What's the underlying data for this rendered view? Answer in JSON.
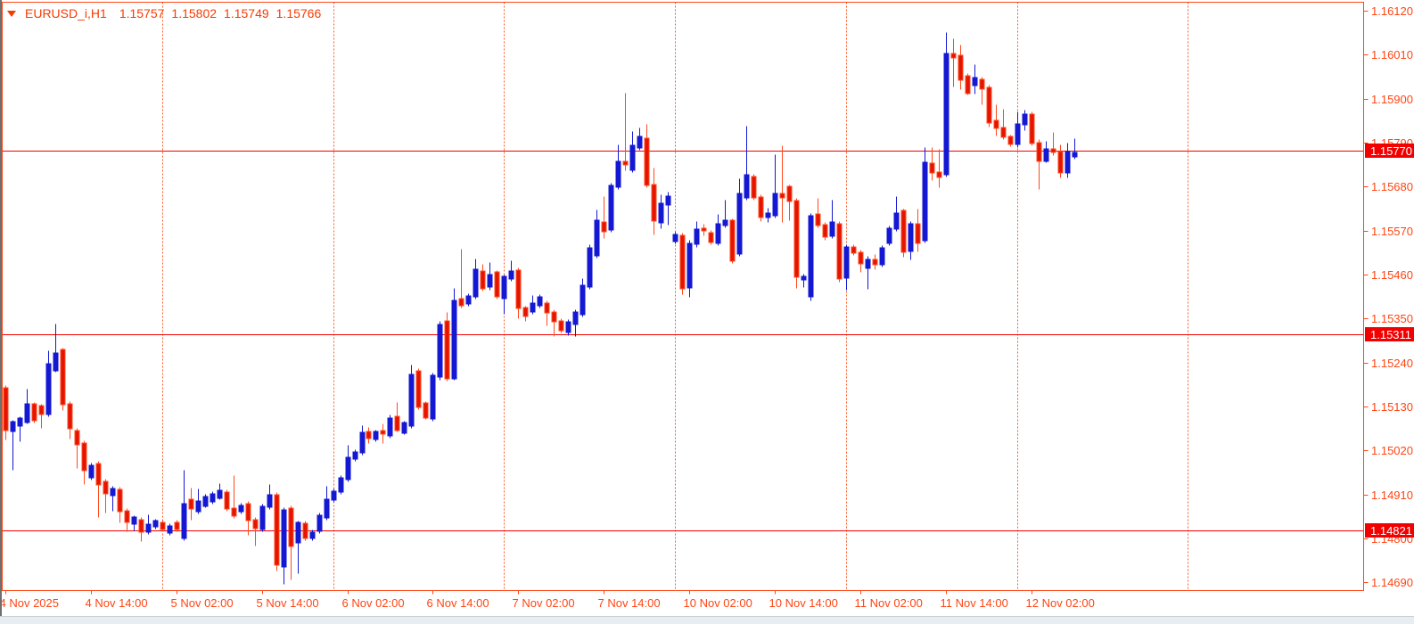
{
  "chart": {
    "symbol": "EURUSD_i,H1",
    "ohlc": {
      "open": "1.15757",
      "high": "1.15802",
      "low": "1.15749",
      "close": "1.15766"
    },
    "colors": {
      "background": "#ffffff",
      "axis": "#ff4514",
      "grid": "#ff5a26",
      "bull": "#1418d2",
      "bear_fill": "#e51400",
      "bear_stroke": "#ff4a1e",
      "level_line": "#f50000",
      "tag_bg": "#f20000",
      "tag_text": "#ffffff"
    },
    "price_axis": {
      "labels": [
        "1.16120",
        "1.16010",
        "1.15900",
        "1.15790",
        "1.15680",
        "1.15570",
        "1.15460",
        "1.15350",
        "1.15240",
        "1.15130",
        "1.15020",
        "1.14910",
        "1.14800",
        "1.14690"
      ],
      "tags": [
        {
          "text": "1.15770",
          "price": 1.1577
        },
        {
          "text": "1.15311",
          "price": 1.15311
        },
        {
          "text": "1.14821",
          "price": 1.14821
        }
      ]
    },
    "time_axis": {
      "labels": [
        {
          "text": "4 Nov 2025",
          "index": 0
        },
        {
          "text": "4 Nov 14:00",
          "index": 12
        },
        {
          "text": "5 Nov 02:00",
          "index": 24
        },
        {
          "text": "5 Nov 14:00",
          "index": 36
        },
        {
          "text": "6 Nov 02:00",
          "index": 48
        },
        {
          "text": "6 Nov 14:00",
          "index": 60
        },
        {
          "text": "7 Nov 02:00",
          "index": 72
        },
        {
          "text": "7 Nov 14:00",
          "index": 84
        },
        {
          "text": "10 Nov 02:00",
          "index": 96
        },
        {
          "text": "10 Nov 14:00",
          "index": 108
        },
        {
          "text": "11 Nov 02:00",
          "index": 120
        },
        {
          "text": "11 Nov 14:00",
          "index": 132
        },
        {
          "text": "12 Nov 02:00",
          "index": 144
        }
      ]
    },
    "horizontal_levels": [
      1.1577,
      1.15311,
      1.14821
    ],
    "day_separator_indices": [
      22,
      46,
      70,
      94,
      118,
      142,
      166
    ]
  },
  "chart_data": {
    "type": "candlestick",
    "instrument": "EURUSD_i",
    "timeframe": "H1",
    "first_candle_time": "4 Nov 2025 02:00",
    "last_candle_time": "12 Nov 2025 08:00",
    "price_range_shown": [
      1.1469,
      1.1612
    ],
    "columns": [
      "open",
      "high",
      "low",
      "close"
    ],
    "candles": [
      [
        1.15177,
        1.15183,
        1.15047,
        1.15072
      ],
      [
        1.1507,
        1.15096,
        1.14972,
        1.15092
      ],
      [
        1.15083,
        1.15105,
        1.15043,
        1.15101
      ],
      [
        1.15092,
        1.15175,
        1.15088,
        1.15137
      ],
      [
        1.15137,
        1.15142,
        1.1509,
        1.15097
      ],
      [
        1.15132,
        1.15137,
        1.15077,
        1.15112
      ],
      [
        1.15112,
        1.1527,
        1.15105,
        1.15236
      ],
      [
        1.15221,
        1.15337,
        1.15216,
        1.15263
      ],
      [
        1.15272,
        1.15278,
        1.15121,
        1.15137
      ],
      [
        1.15137,
        1.15143,
        1.15049,
        1.15077
      ],
      [
        1.1507,
        1.15076,
        1.14976,
        1.15037
      ],
      [
        1.15039,
        1.15045,
        1.14936,
        1.14972
      ],
      [
        1.14954,
        1.1499,
        1.14948,
        1.14983
      ],
      [
        1.14987,
        1.14993,
        1.14853,
        1.14936
      ],
      [
        1.14943,
        1.1495,
        1.14865,
        1.14914
      ],
      [
        1.14909,
        1.14931,
        1.14869,
        1.14925
      ],
      [
        1.14923,
        1.14929,
        1.1484,
        1.14869
      ],
      [
        1.14869,
        1.14875,
        1.14817,
        1.14842
      ],
      [
        1.14838,
        1.14859,
        1.1482,
        1.14853
      ],
      [
        1.14847,
        1.14853,
        1.14793,
        1.14817
      ],
      [
        1.14817,
        1.1486,
        1.14811,
        1.14835
      ],
      [
        1.14831,
        1.1485,
        1.14825,
        1.14844
      ],
      [
        1.1484,
        1.14846,
        1.14818,
        1.14824
      ],
      [
        1.14815,
        1.14837,
        1.14809,
        1.14831
      ],
      [
        1.1484,
        1.14846,
        1.14818,
        1.14824
      ],
      [
        1.14802,
        1.14972,
        1.14795,
        1.14887
      ],
      [
        1.14898,
        1.14927,
        1.14847,
        1.14876
      ],
      [
        1.14869,
        1.14925,
        1.14862,
        1.14894
      ],
      [
        1.14883,
        1.14911,
        1.14877,
        1.14905
      ],
      [
        1.14894,
        1.14918,
        1.14888,
        1.14911
      ],
      [
        1.14903,
        1.14938,
        1.14897,
        1.1492
      ],
      [
        1.14916,
        1.14922,
        1.14869,
        1.14876
      ],
      [
        1.14876,
        1.14958,
        1.14851,
        1.14858
      ],
      [
        1.14869,
        1.14889,
        1.14863,
        1.14883
      ],
      [
        1.14887,
        1.14893,
        1.14809,
        1.14847
      ],
      [
        1.14847,
        1.14853,
        1.14782,
        1.14826
      ],
      [
        1.14824,
        1.14886,
        1.14817,
        1.1488
      ],
      [
        1.1488,
        1.14936,
        1.14874,
        1.14909
      ],
      [
        1.14909,
        1.14915,
        1.1472,
        1.14735
      ],
      [
        1.14731,
        1.14878,
        1.14686,
        1.14871
      ],
      [
        1.14876,
        1.14882,
        1.14697,
        1.14782
      ],
      [
        1.14791,
        1.14844,
        1.14712,
        1.14839
      ],
      [
        1.14838,
        1.14844,
        1.14795,
        1.14802
      ],
      [
        1.14802,
        1.14822,
        1.14795,
        1.14815
      ],
      [
        1.1482,
        1.14864,
        1.14813,
        1.14858
      ],
      [
        1.14853,
        1.14932,
        1.14847,
        1.14898
      ],
      [
        1.14898,
        1.14925,
        1.14892,
        1.14918
      ],
      [
        1.14918,
        1.14958,
        1.14912,
        1.14952
      ],
      [
        1.1495,
        1.15035,
        1.14943,
        1.15002
      ],
      [
        1.15,
        1.15024,
        1.14993,
        1.15017
      ],
      [
        1.15016,
        1.15083,
        1.15009,
        1.15066
      ],
      [
        1.15068,
        1.15079,
        1.15038,
        1.15051
      ],
      [
        1.1505,
        1.15073,
        1.15043,
        1.15067
      ],
      [
        1.1507,
        1.15087,
        1.15038,
        1.15063
      ],
      [
        1.15058,
        1.15109,
        1.15051,
        1.15102
      ],
      [
        1.15106,
        1.15141,
        1.15067,
        1.15071
      ],
      [
        1.15066,
        1.15095,
        1.1506,
        1.15089
      ],
      [
        1.15083,
        1.15235,
        1.15077,
        1.1521
      ],
      [
        1.1522,
        1.15226,
        1.15124,
        1.15131
      ],
      [
        1.15138,
        1.15144,
        1.15098,
        1.15103
      ],
      [
        1.15101,
        1.15214,
        1.15094,
        1.15208
      ],
      [
        1.15205,
        1.15343,
        1.15198,
        1.15335
      ],
      [
        1.15345,
        1.15367,
        1.15195,
        1.15202
      ],
      [
        1.15202,
        1.15426,
        1.15196,
        1.15396
      ],
      [
        1.154,
        1.15524,
        1.15377,
        1.15385
      ],
      [
        1.15388,
        1.15413,
        1.15381,
        1.15407
      ],
      [
        1.15407,
        1.155,
        1.154,
        1.15474
      ],
      [
        1.1547,
        1.15487,
        1.15419,
        1.15426
      ],
      [
        1.1543,
        1.15492,
        1.15423,
        1.1546
      ],
      [
        1.15466,
        1.15472,
        1.154,
        1.15407
      ],
      [
        1.15403,
        1.15461,
        1.15362,
        1.15455
      ],
      [
        1.15452,
        1.15496,
        1.15445,
        1.15468
      ],
      [
        1.15472,
        1.15478,
        1.15351,
        1.15377
      ],
      [
        1.15377,
        1.15383,
        1.15343,
        1.15358
      ],
      [
        1.15369,
        1.15409,
        1.15362,
        1.15388
      ],
      [
        1.15384,
        1.1541,
        1.15377,
        1.15404
      ],
      [
        1.15389,
        1.15395,
        1.15334,
        1.15366
      ],
      [
        1.15366,
        1.15372,
        1.15307,
        1.15344
      ],
      [
        1.15345,
        1.15351,
        1.15315,
        1.15322
      ],
      [
        1.15318,
        1.15348,
        1.15308,
        1.15342
      ],
      [
        1.15337,
        1.15373,
        1.15306,
        1.15367
      ],
      [
        1.15362,
        1.15451,
        1.15355,
        1.15433
      ],
      [
        1.15432,
        1.15535,
        1.15425,
        1.15528
      ],
      [
        1.1551,
        1.15623,
        1.15503,
        1.15595
      ],
      [
        1.15592,
        1.15656,
        1.15551,
        1.1557
      ],
      [
        1.15573,
        1.1569,
        1.15566,
        1.15684
      ],
      [
        1.15681,
        1.15785,
        1.15674,
        1.15744
      ],
      [
        1.15744,
        1.15915,
        1.15721,
        1.15736
      ],
      [
        1.15723,
        1.1582,
        1.15716,
        1.15784
      ],
      [
        1.15779,
        1.15827,
        1.15772,
        1.15806
      ],
      [
        1.15801,
        1.15838,
        1.15679,
        1.15686
      ],
      [
        1.15686,
        1.15727,
        1.1556,
        1.15597
      ],
      [
        1.15591,
        1.1566,
        1.15576,
        1.15639
      ],
      [
        1.15637,
        1.15668,
        1.15585,
        1.15657
      ],
      [
        1.15545,
        1.15568,
        1.15538,
        1.15561
      ],
      [
        1.15558,
        1.15565,
        1.15411,
        1.15426
      ],
      [
        1.15428,
        1.15546,
        1.15405,
        1.15539
      ],
      [
        1.15537,
        1.15594,
        1.1553,
        1.15574
      ],
      [
        1.15576,
        1.15588,
        1.15558,
        1.15571
      ],
      [
        1.15565,
        1.15571,
        1.15536,
        1.15543
      ],
      [
        1.15541,
        1.15612,
        1.15534,
        1.15587
      ],
      [
        1.15585,
        1.15647,
        1.15578,
        1.15597
      ],
      [
        1.15595,
        1.15601,
        1.1549,
        1.15495
      ],
      [
        1.15513,
        1.15701,
        1.15506,
        1.15662
      ],
      [
        1.15655,
        1.15832,
        1.15648,
        1.1571
      ],
      [
        1.15705,
        1.15712,
        1.15648,
        1.15655
      ],
      [
        1.15655,
        1.15661,
        1.15593,
        1.15606
      ],
      [
        1.15604,
        1.15628,
        1.15591,
        1.15613
      ],
      [
        1.1561,
        1.15761,
        1.15603,
        1.15662
      ],
      [
        1.15664,
        1.15784,
        1.15592,
        1.15653
      ],
      [
        1.1568,
        1.15686,
        1.15597,
        1.15645
      ],
      [
        1.15645,
        1.15651,
        1.15426,
        1.15455
      ],
      [
        1.15448,
        1.15462,
        1.15429,
        1.15455
      ],
      [
        1.15407,
        1.15615,
        1.15396,
        1.15608
      ],
      [
        1.15611,
        1.15652,
        1.15578,
        1.15585
      ],
      [
        1.15585,
        1.15591,
        1.15548,
        1.15555
      ],
      [
        1.15558,
        1.15648,
        1.15551,
        1.15591
      ],
      [
        1.15587,
        1.15593,
        1.15443,
        1.1545
      ],
      [
        1.15454,
        1.15536,
        1.15422,
        1.15529
      ],
      [
        1.15529,
        1.15536,
        1.15509,
        1.15516
      ],
      [
        1.15516,
        1.15522,
        1.15466,
        1.15488
      ],
      [
        1.15477,
        1.15506,
        1.15424,
        1.15499
      ],
      [
        1.15499,
        1.15512,
        1.15474,
        1.15487
      ],
      [
        1.15486,
        1.15533,
        1.15479,
        1.15527
      ],
      [
        1.1554,
        1.15583,
        1.15533,
        1.15576
      ],
      [
        1.15576,
        1.15656,
        1.15569,
        1.15615
      ],
      [
        1.1562,
        1.15626,
        1.15505,
        1.15517
      ],
      [
        1.1552,
        1.15594,
        1.15497,
        1.15587
      ],
      [
        1.15587,
        1.15625,
        1.15519,
        1.15541
      ],
      [
        1.15548,
        1.1578,
        1.1554,
        1.1574
      ],
      [
        1.15738,
        1.15779,
        1.15697,
        1.15716
      ],
      [
        1.15716,
        1.15775,
        1.15679,
        1.15705
      ],
      [
        1.15712,
        1.16067,
        1.15705,
        1.16013
      ],
      [
        1.16013,
        1.1605,
        1.15931,
        1.16005
      ],
      [
        1.16008,
        1.16035,
        1.15924,
        1.15949
      ],
      [
        1.15957,
        1.15963,
        1.1591,
        1.15916
      ],
      [
        1.15936,
        1.15987,
        1.15912,
        1.15953
      ],
      [
        1.15949,
        1.15955,
        1.15886,
        1.15926
      ],
      [
        1.15929,
        1.15935,
        1.1583,
        1.15841
      ],
      [
        1.15846,
        1.15887,
        1.15808,
        1.15827
      ],
      [
        1.15827,
        1.15874,
        1.15799,
        1.15805
      ],
      [
        1.15805,
        1.15811,
        1.15781,
        1.15787
      ],
      [
        1.15787,
        1.15868,
        1.1578,
        1.15838
      ],
      [
        1.15838,
        1.15872,
        1.15822,
        1.15861
      ],
      [
        1.15861,
        1.15868,
        1.15784,
        1.1579
      ],
      [
        1.1579,
        1.158,
        1.15674,
        1.15745
      ],
      [
        1.15745,
        1.15794,
        1.1574,
        1.15775
      ],
      [
        1.15775,
        1.15816,
        1.15759,
        1.15768
      ],
      [
        1.15768,
        1.15786,
        1.15704,
        1.15716
      ],
      [
        1.15716,
        1.1579,
        1.15704,
        1.15768
      ],
      [
        1.15757,
        1.15802,
        1.15749,
        1.15766
      ]
    ]
  }
}
